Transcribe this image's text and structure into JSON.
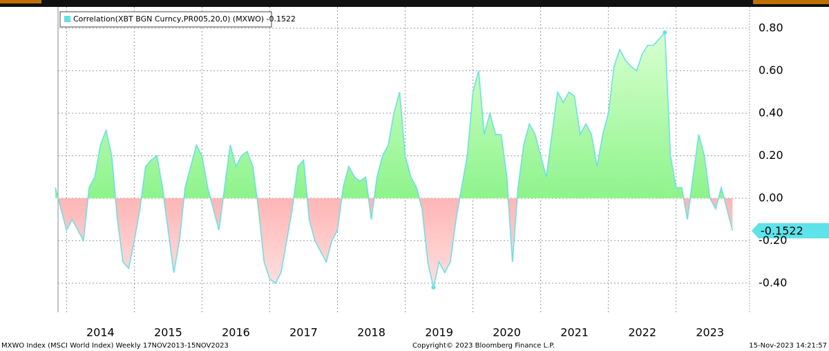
{
  "chart_data": {
    "type": "area",
    "legend": "Correlation(XBT BGN Curncy,PR005,20,0) (MXWO) -0.1522",
    "current_label": "-0.1522",
    "footer_left": "MXWO Index (MSCI World Index)  Weekly 17NOV2013-15NOV2023",
    "footer_center": "Copyright© 2023 Bloomberg Finance L.P.",
    "footer_right": "15-Nov-2023 14:21:57",
    "color": "#5fe3ea",
    "positive_color": "#66ee66",
    "negative_color": "#ff6666",
    "grid": true,
    "categories": [
      null,
      null,
      null,
      null,
      null,
      null,
      null,
      null,
      "2014",
      null,
      null,
      null,
      null,
      null,
      null,
      null,
      null,
      null,
      null,
      null,
      "2015",
      null,
      null,
      null,
      null,
      null,
      null,
      null,
      null,
      null,
      null,
      null,
      "2016",
      null,
      null,
      null,
      null,
      null,
      null,
      null,
      null,
      null,
      null,
      null,
      "2017",
      null,
      null,
      null,
      null,
      null,
      null,
      null,
      null,
      null,
      null,
      null,
      "2018",
      null,
      null,
      null,
      null,
      null,
      null,
      null,
      null,
      null,
      null,
      null,
      "2019",
      null,
      null,
      null,
      null,
      null,
      null,
      null,
      null,
      null,
      null,
      null,
      "2020",
      null,
      null,
      null,
      null,
      null,
      null,
      null,
      null,
      null,
      null,
      null,
      "2021",
      null,
      null,
      null,
      null,
      null,
      null,
      null,
      null,
      null,
      null,
      null,
      "2022",
      null,
      null,
      null,
      null,
      null,
      null,
      null,
      null,
      null,
      null,
      null,
      "2023",
      null,
      null,
      null,
      null
    ],
    "values": [
      0.05,
      -0.05,
      -0.15,
      -0.1,
      -0.15,
      -0.2,
      0.05,
      0.1,
      0.25,
      0.32,
      0.2,
      -0.1,
      -0.3,
      -0.33,
      -0.2,
      -0.05,
      0.15,
      0.18,
      0.2,
      0.05,
      -0.15,
      -0.35,
      -0.2,
      0.05,
      0.15,
      0.25,
      0.2,
      0.05,
      -0.05,
      -0.15,
      0.05,
      0.25,
      0.15,
      0.2,
      0.22,
      0.15,
      -0.05,
      -0.3,
      -0.38,
      -0.4,
      -0.35,
      -0.2,
      -0.05,
      0.15,
      0.18,
      -0.1,
      -0.2,
      -0.25,
      -0.3,
      -0.2,
      -0.15,
      0.05,
      0.15,
      0.1,
      0.08,
      0.1,
      -0.1,
      0.1,
      0.2,
      0.25,
      0.4,
      0.5,
      0.2,
      0.1,
      0.05,
      -0.05,
      -0.3,
      -0.42,
      -0.3,
      -0.35,
      -0.3,
      -0.1,
      0.05,
      0.2,
      0.5,
      0.6,
      0.3,
      0.4,
      0.3,
      0.3,
      0.1,
      -0.3,
      0.05,
      0.25,
      0.35,
      0.3,
      0.2,
      0.1,
      0.3,
      0.5,
      0.45,
      0.5,
      0.48,
      0.3,
      0.35,
      0.3,
      0.15,
      0.3,
      0.4,
      0.62,
      0.7,
      0.65,
      0.62,
      0.6,
      0.68,
      0.72,
      0.72,
      0.75,
      0.78,
      0.2,
      0.05,
      0.05,
      -0.1,
      0.1,
      0.3,
      0.2,
      0.0,
      -0.05,
      0.05,
      -0.05,
      -0.1522
    ],
    "ylim": [
      -0.537,
      0.868
    ],
    "yticks": [
      {
        "value": -0.4,
        "label": "-0.40"
      },
      {
        "value": -0.2,
        "label": "-0.20"
      },
      {
        "value": 0,
        "label": "0.00"
      },
      {
        "value": 0.2,
        "label": "0.20"
      },
      {
        "value": 0.4,
        "label": "0.40"
      },
      {
        "value": 0.6,
        "label": "0.60"
      },
      {
        "value": 0.8,
        "label": "0.80"
      }
    ]
  }
}
